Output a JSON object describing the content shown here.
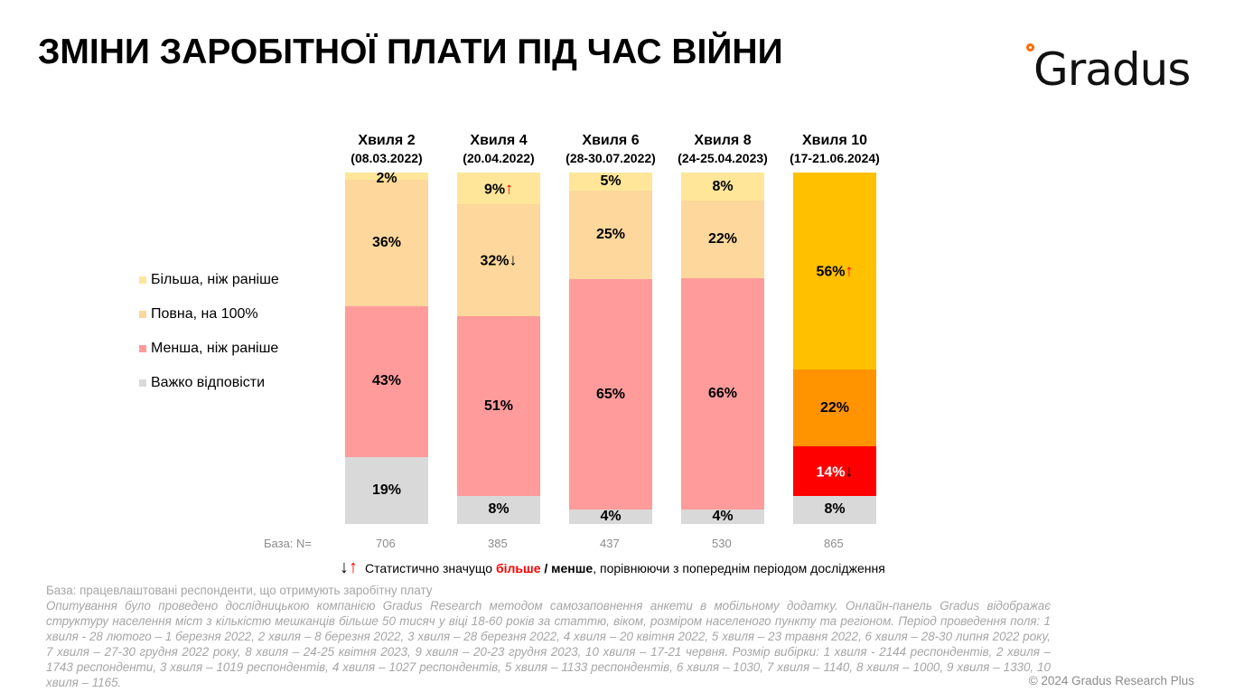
{
  "title": "ЗМІНИ ЗАРОБІТНОЇ ПЛАТИ ПІД ЧАС ВІЙНИ",
  "logo_text": "Gradus",
  "chart_data": {
    "type": "bar",
    "stacked": true,
    "percent": true,
    "categories": [
      {
        "name": "Хвиля 2",
        "date": "(08.03.2022)",
        "n": "706"
      },
      {
        "name": "Хвиля 4",
        "date": "(20.04.2022)",
        "n": "385"
      },
      {
        "name": "Хвиля 6",
        "date": "(28-30.07.2022)",
        "n": "437"
      },
      {
        "name": "Хвиля 8",
        "date": "(24-25.04.2023)",
        "n": "530"
      },
      {
        "name": "Хвиля 10",
        "date": "(17-21.06.2024)",
        "n": "865"
      }
    ],
    "series": [
      {
        "name": "Більша, ніж раніше",
        "color": "#FFE699",
        "highlight_color": "#FFC000",
        "values": [
          2,
          9,
          5,
          8,
          56
        ],
        "labels": [
          "2%",
          "9%",
          "5%",
          "8%",
          "56%"
        ],
        "arrows": [
          null,
          "up",
          null,
          null,
          "up"
        ]
      },
      {
        "name": "Повна, на 100%",
        "color": "#FDD79B",
        "highlight_color": "#FF9300",
        "values": [
          36,
          32,
          25,
          22,
          22
        ],
        "labels": [
          "36%",
          "32%",
          "25%",
          "22%",
          "22%"
        ],
        "arrows": [
          null,
          "down",
          null,
          null,
          null
        ]
      },
      {
        "name": "Менша, ніж раніше",
        "color": "#FF9B9B",
        "highlight_color": "#FF0000",
        "values": [
          43,
          51,
          65,
          66,
          14
        ],
        "labels": [
          "43%",
          "51%",
          "65%",
          "66%",
          "14%"
        ],
        "arrows": [
          null,
          null,
          null,
          null,
          "down"
        ]
      },
      {
        "name": "Важко відповісти",
        "color": "#D9D9D9",
        "highlight_color": "#D9D9D9",
        "values": [
          19,
          8,
          4,
          4,
          8
        ],
        "labels": [
          "19%",
          "8%",
          "4%",
          "4%",
          "8%"
        ],
        "arrows": [
          null,
          null,
          null,
          null,
          null
        ]
      }
    ],
    "highlight_category_index": 4,
    "legend_position": "left",
    "grid": false
  },
  "base_label": "База: N=",
  "significance": {
    "prefix": "Статистично значущо ",
    "more": "більше",
    "sep": " / ",
    "less": "менше",
    "suffix": ", порівнюючи з попереднім періодом дослідження",
    "up_color": "#FF0000",
    "down_color": "#000000"
  },
  "notes": {
    "base": "База: працевлаштовані респонденти, що отримують заробітну плату",
    "method": "Опитування було проведено дослідницькою компанією Gradus Research методом самозаповнення анкети в мобільному додатку. Онлайн-панель Gradus відображає структуру населення міст з кількістю мешканців більше 50 тисяч у віці 18-60 років за статтю, віком, розміром населеного пункту та регіоном. Період проведення поля: 1 хвиля - 28 лютого – 1 березня 2022, 2 хвиля – 8 березня 2022, 3 хвиля – 28 березня 2022, 4 хвиля – 20 квітня 2022, 5 хвиля – 23 травня 2022, 6 хвиля – 28-30 липня 2022 року, 7 хвиля – 27-30 грудня 2022 року, 8 хвиля – 24-25 квітня 2023, 9 хвиля – 20-23 грудня 2023, 10 хвиля – 17-21 червня. Розмір вибірки: 1 хвиля - 2144 респондентів, 2 хвиля – 1743 респонденти, 3 хвиля – 1019 респондентів, 4 хвиля – 1027 респондентів, 5 хвиля – 1133 респондентів, 6 хвиля – 1030, 7 хвиля – 1140, 8 хвиля – 1000, 9 хвиля – 1330, 10 хвиля – 1165."
  },
  "copyright": "© 2024 Gradus Research Plus"
}
